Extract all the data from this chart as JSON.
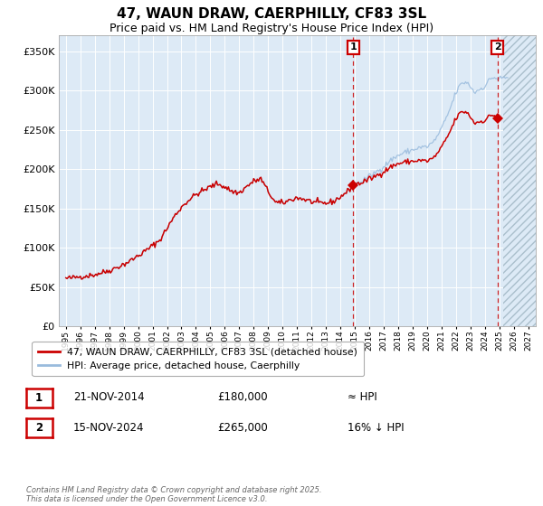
{
  "title": "47, WAUN DRAW, CAERPHILLY, CF83 3SL",
  "subtitle": "Price paid vs. HM Land Registry's House Price Index (HPI)",
  "legend_line1": "47, WAUN DRAW, CAERPHILLY, CF83 3SL (detached house)",
  "legend_line2": "HPI: Average price, detached house, Caerphilly",
  "annotation1_label": "1",
  "annotation1_date": "21-NOV-2014",
  "annotation1_price": "£180,000",
  "annotation1_hpi": "≈ HPI",
  "annotation2_label": "2",
  "annotation2_date": "15-NOV-2024",
  "annotation2_price": "£265,000",
  "annotation2_hpi": "16% ↓ HPI",
  "footnote": "Contains HM Land Registry data © Crown copyright and database right 2025.\nThis data is licensed under the Open Government Licence v3.0.",
  "bg_color": "#ddeaf6",
  "line_color_red": "#cc0000",
  "line_color_blue": "#99bbdd",
  "grid_color": "#ffffff",
  "annotation_box_color": "#cc0000",
  "ylim": [
    0,
    370000
  ],
  "yticks": [
    0,
    50000,
    100000,
    150000,
    200000,
    250000,
    300000,
    350000
  ],
  "xlim_start": 1994.5,
  "xlim_end": 2027.5,
  "sale1_x": 2014.89,
  "sale1_y": 180000,
  "sale2_x": 2024.88,
  "sale2_y": 265000,
  "future_x": 2025.3,
  "title_fontsize": 11,
  "subtitle_fontsize": 9
}
